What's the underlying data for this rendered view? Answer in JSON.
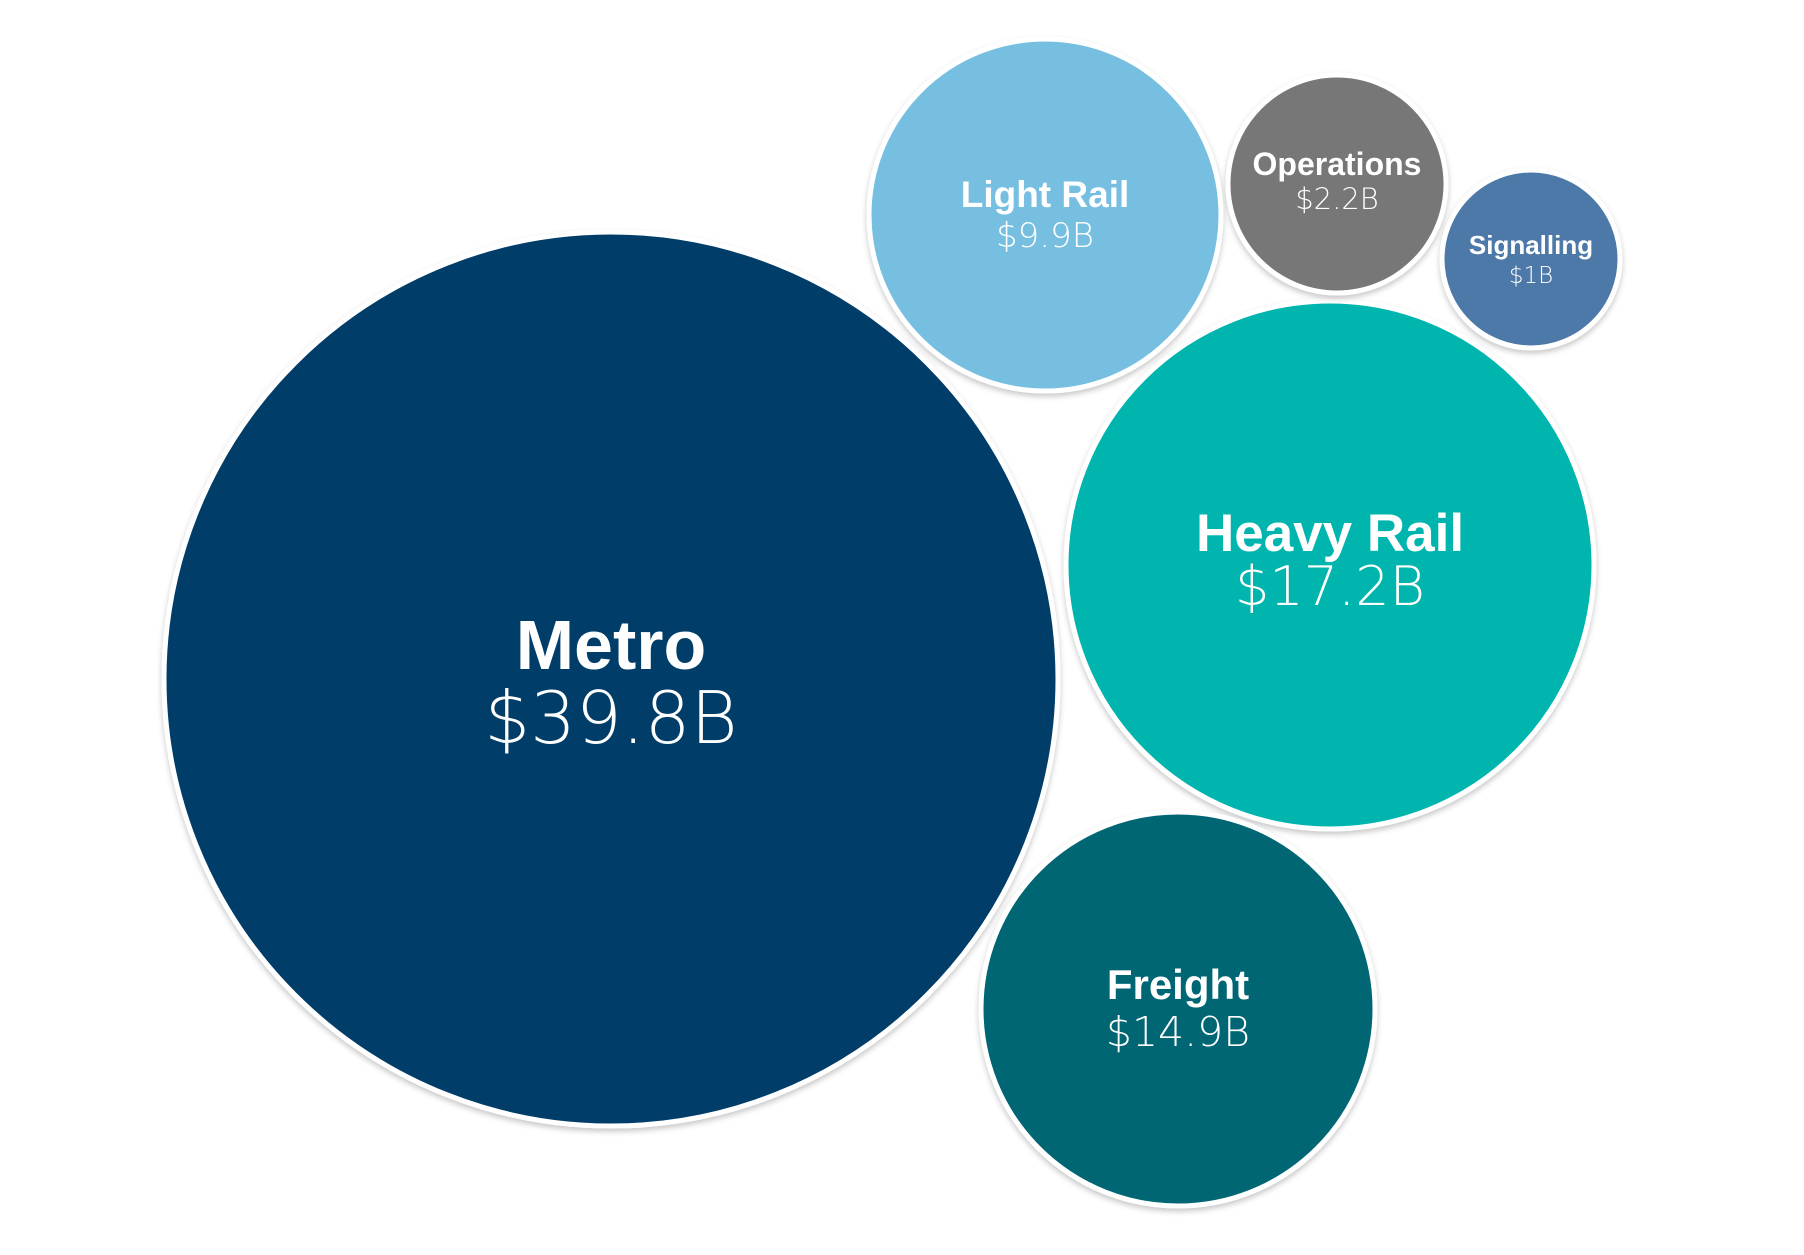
{
  "chart_data": {
    "type": "bubble",
    "unit": "$B",
    "bubbles": [
      {
        "name": "Metro",
        "value": 39.8,
        "value_label": "$39.8B",
        "color": "#023c68"
      },
      {
        "name": "Heavy Rail",
        "value": 17.2,
        "value_label": "$17.2B",
        "color": "#00b5ae"
      },
      {
        "name": "Freight",
        "value": 14.9,
        "value_label": "$14.9B",
        "color": "#006673"
      },
      {
        "name": "Light Rail",
        "value": 9.9,
        "value_label": "$9.9B",
        "color": "#77bfe0"
      },
      {
        "name": "Operations",
        "value": 2.2,
        "value_label": "$2.2B",
        "color": "#777777"
      },
      {
        "name": "Signalling",
        "value": 1,
        "value_label": "$1B",
        "color": "#4e79a8"
      }
    ],
    "legend": "none",
    "grid": false
  }
}
